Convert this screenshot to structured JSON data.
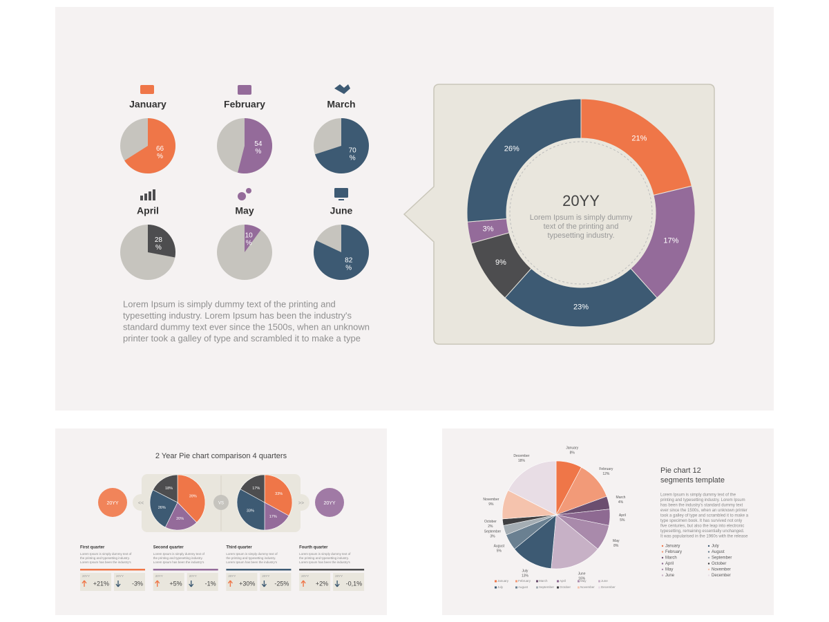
{
  "chart_data": [
    {
      "type": "pie",
      "title": "January",
      "values": [
        66
      ],
      "value_labels": [
        "66 %"
      ],
      "colors": [
        "#ef7648"
      ]
    },
    {
      "type": "pie",
      "title": "February",
      "values": [
        54
      ],
      "value_labels": [
        "54 %"
      ],
      "colors": [
        "#946b9a"
      ]
    },
    {
      "type": "pie",
      "title": "March",
      "values": [
        70
      ],
      "value_labels": [
        "70 %"
      ],
      "colors": [
        "#3d5a73"
      ]
    },
    {
      "type": "pie",
      "title": "April",
      "values": [
        28
      ],
      "value_labels": [
        "28 %"
      ],
      "colors": [
        "#4d4d4f"
      ]
    },
    {
      "type": "pie",
      "title": "May",
      "values": [
        10
      ],
      "value_labels": [
        "10 %"
      ],
      "colors": [
        "#946b9a"
      ]
    },
    {
      "type": "pie",
      "title": "June",
      "values": [
        82
      ],
      "value_labels": [
        "82 %"
      ],
      "colors": [
        "#3d5a73"
      ]
    },
    {
      "type": "donut",
      "center_title": "20YY",
      "center_text": [
        "Lorem Ipsum is simply dummy",
        "text of the printing and",
        "typesetting industry."
      ],
      "values": [
        21,
        17,
        23,
        9,
        3,
        26
      ],
      "value_labels": [
        "21%",
        "17%",
        "23%",
        "9%",
        "3%",
        "26%"
      ],
      "colors": [
        "#ef7648",
        "#946b9a",
        "#3d5a73",
        "#4d4d4f",
        "#946b9a",
        "#3d5a73"
      ]
    },
    {
      "type": "pie",
      "values": [
        39,
        20,
        26,
        18
      ],
      "value_labels": [
        "39%",
        "20%",
        "26%",
        "18%"
      ],
      "colors": [
        "#ef7648",
        "#946b9a",
        "#3d5a73",
        "#4d4d4f"
      ]
    },
    {
      "type": "pie",
      "values": [
        33,
        17,
        33,
        17
      ],
      "value_labels": [
        "33%",
        "17%",
        "33%",
        "17%"
      ],
      "colors": [
        "#ef7648",
        "#946b9a",
        "#3d5a73",
        "#4d4d4f"
      ]
    },
    {
      "type": "pie",
      "title": [
        "Pie chart 12",
        "segments template"
      ],
      "categories": [
        "January",
        "February",
        "March",
        "April",
        "May",
        "June",
        "July",
        "August",
        "September",
        "October",
        "November",
        "December"
      ],
      "values": [
        8,
        12,
        4,
        5,
        8,
        16,
        13,
        5,
        3,
        2,
        9,
        18
      ],
      "value_labels": [
        "8%",
        "12%",
        "4%",
        "5%",
        "8%",
        "16%",
        "13%",
        "5%",
        "3%",
        "2%",
        "9%",
        "18%"
      ],
      "colors": [
        "#ef7648",
        "#f29a78",
        "#6b4e6f",
        "#8e6a92",
        "#a98aab",
        "#c7b1c6",
        "#3d5a73",
        "#6a8091",
        "#a4adb3",
        "#3f3f41",
        "#f5c3ad",
        "#e8dde5"
      ],
      "text": [
        "Lorem Ipsum is simply dummy text of the",
        "printing and typesetting industry. Lorem Ipsum",
        "has been the industry's standard dummy text",
        "ever since the 1500s, when an unknown printer",
        "took a galley of type and scrambled it to make a",
        "type specimen book. It has survived not only",
        "five centuries, but also the leap into electronic",
        "typesetting, remaining essentially unchanged.",
        "It was popularised in the 1960s with the release"
      ]
    }
  ],
  "main_text": [
    "Lorem Ipsum is simply dummy text of the printing and",
    "typesetting industry. Lorem Ipsum has been the industry's",
    "standard dummy text ever since the 1500s, when an unknown",
    "printer took a galley of type and scrambled it to make a type"
  ],
  "comparison": {
    "title": "2 Year Pie chart comparison 4 quarters",
    "left_label": "20YY",
    "right_label": "20YY",
    "prev": "<<",
    "next": ">>",
    "vs": "VS",
    "quarters": [
      {
        "title": "First quarter",
        "text": [
          "Lorem Ipsum is simply dummy text of",
          "the printing and typesetting industry.",
          "Lorem Ipsum has been the industry's"
        ],
        "kpis": [
          {
            "label": "20YY",
            "value": "+21%"
          },
          {
            "label": "20YY",
            "value": "-3%"
          }
        ]
      },
      {
        "title": "Second quarter",
        "text": [
          "Lorem Ipsum is simply dummy text of",
          "the printing and typesetting industry.",
          "Lorem Ipsum has been the industry's"
        ],
        "kpis": [
          {
            "label": "20YY",
            "value": "+5%"
          },
          {
            "label": "20YY",
            "value": "-1%"
          }
        ]
      },
      {
        "title": "Third quarter",
        "text": [
          "Lorem Ipsum is simply dummy text of",
          "the printing and typesetting industry.",
          "Lorem Ipsum has been the industry's"
        ],
        "kpis": [
          {
            "label": "20YY",
            "value": "+30%"
          },
          {
            "label": "20YY",
            "value": "-25%"
          }
        ]
      },
      {
        "title": "Fourth quarter",
        "text": [
          "Lorem Ipsum is simply dummy text of",
          "the printing and typesetting industry.",
          "Lorem Ipsum has been the industry's"
        ],
        "kpis": [
          {
            "label": "20YY",
            "value": "+2%"
          },
          {
            "label": "20YY",
            "value": "-0,1%"
          }
        ]
      }
    ]
  }
}
